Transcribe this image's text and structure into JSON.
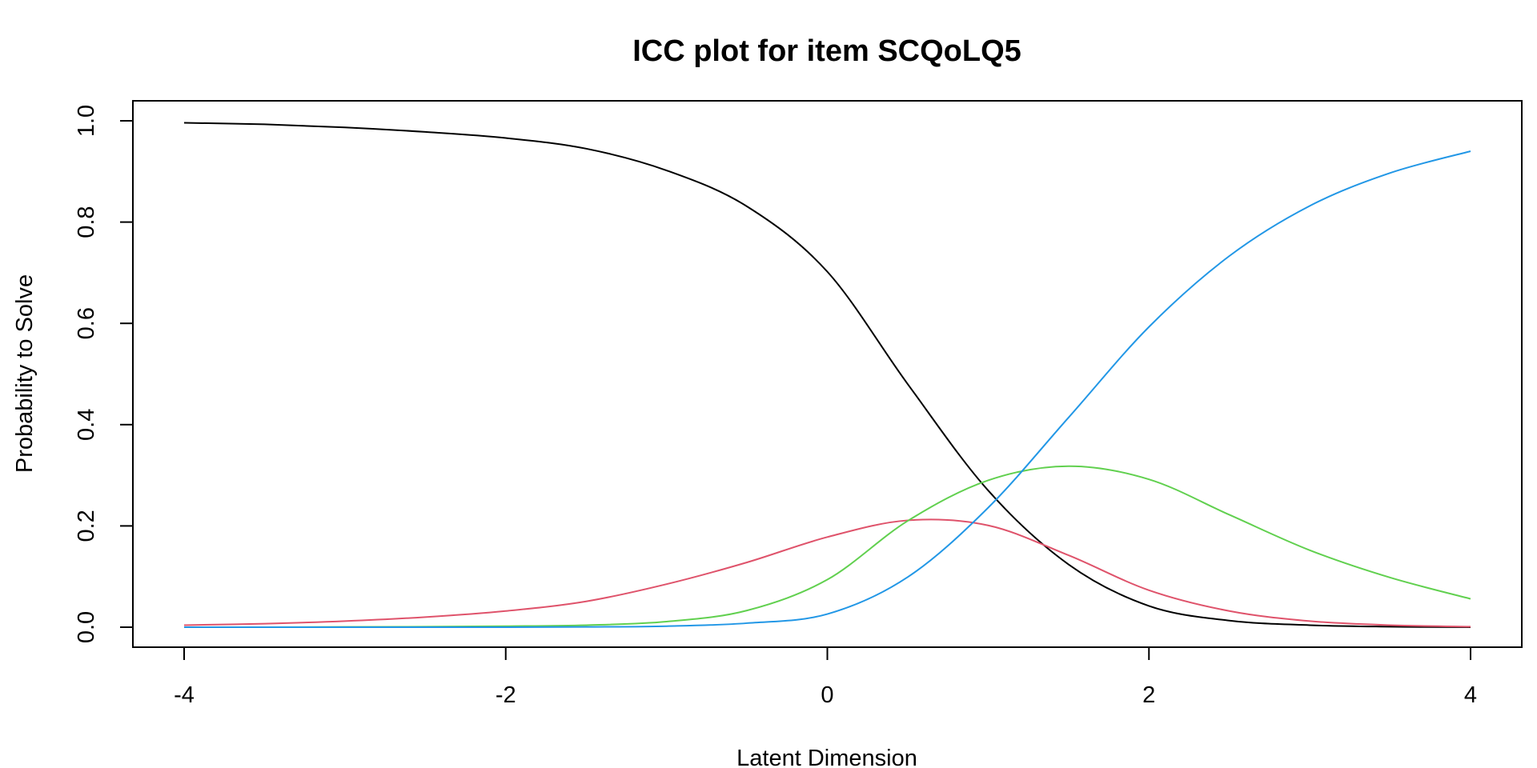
{
  "chart_data": {
    "type": "line",
    "title": "ICC plot for item SCQoLQ5",
    "xlabel": "Latent Dimension",
    "ylabel": "Probability to Solve",
    "xlim": [
      -4,
      4
    ],
    "ylim": [
      0,
      1
    ],
    "x_ticks": [
      "-4",
      "-2",
      "0",
      "2",
      "4"
    ],
    "y_ticks": [
      "0.0",
      "0.2",
      "0.4",
      "0.6",
      "0.8",
      "1.0"
    ],
    "grid": false,
    "legend": "none",
    "x": [
      -4,
      -3.5,
      -3,
      -2.5,
      -2,
      -1.5,
      -1,
      -0.5,
      0,
      0.5,
      1,
      1.5,
      2,
      2.5,
      3,
      3.5,
      4
    ],
    "series": [
      {
        "color": "#000000",
        "values": [
          0.996,
          0.993,
          0.987,
          0.978,
          0.966,
          0.945,
          0.902,
          0.831,
          0.702,
          0.48,
          0.27,
          0.124,
          0.042,
          0.013,
          0.004,
          0.001,
          0.0
        ]
      },
      {
        "color": "#DF536B",
        "values": [
          0.004,
          0.007,
          0.012,
          0.02,
          0.032,
          0.051,
          0.085,
          0.128,
          0.178,
          0.211,
          0.201,
          0.142,
          0.073,
          0.032,
          0.012,
          0.004,
          0.001
        ]
      },
      {
        "color": "#61D04F",
        "values": [
          0.0,
          0.0,
          0.0005,
          0.001,
          0.002,
          0.004,
          0.011,
          0.033,
          0.094,
          0.21,
          0.29,
          0.318,
          0.292,
          0.222,
          0.152,
          0.098,
          0.056
        ]
      },
      {
        "color": "#2297E6",
        "values": [
          0.0,
          0.0,
          0.0,
          0.0,
          0.0,
          0.0005,
          0.002,
          0.008,
          0.026,
          0.099,
          0.236,
          0.414,
          0.593,
          0.733,
          0.832,
          0.897,
          0.94
        ]
      }
    ]
  }
}
